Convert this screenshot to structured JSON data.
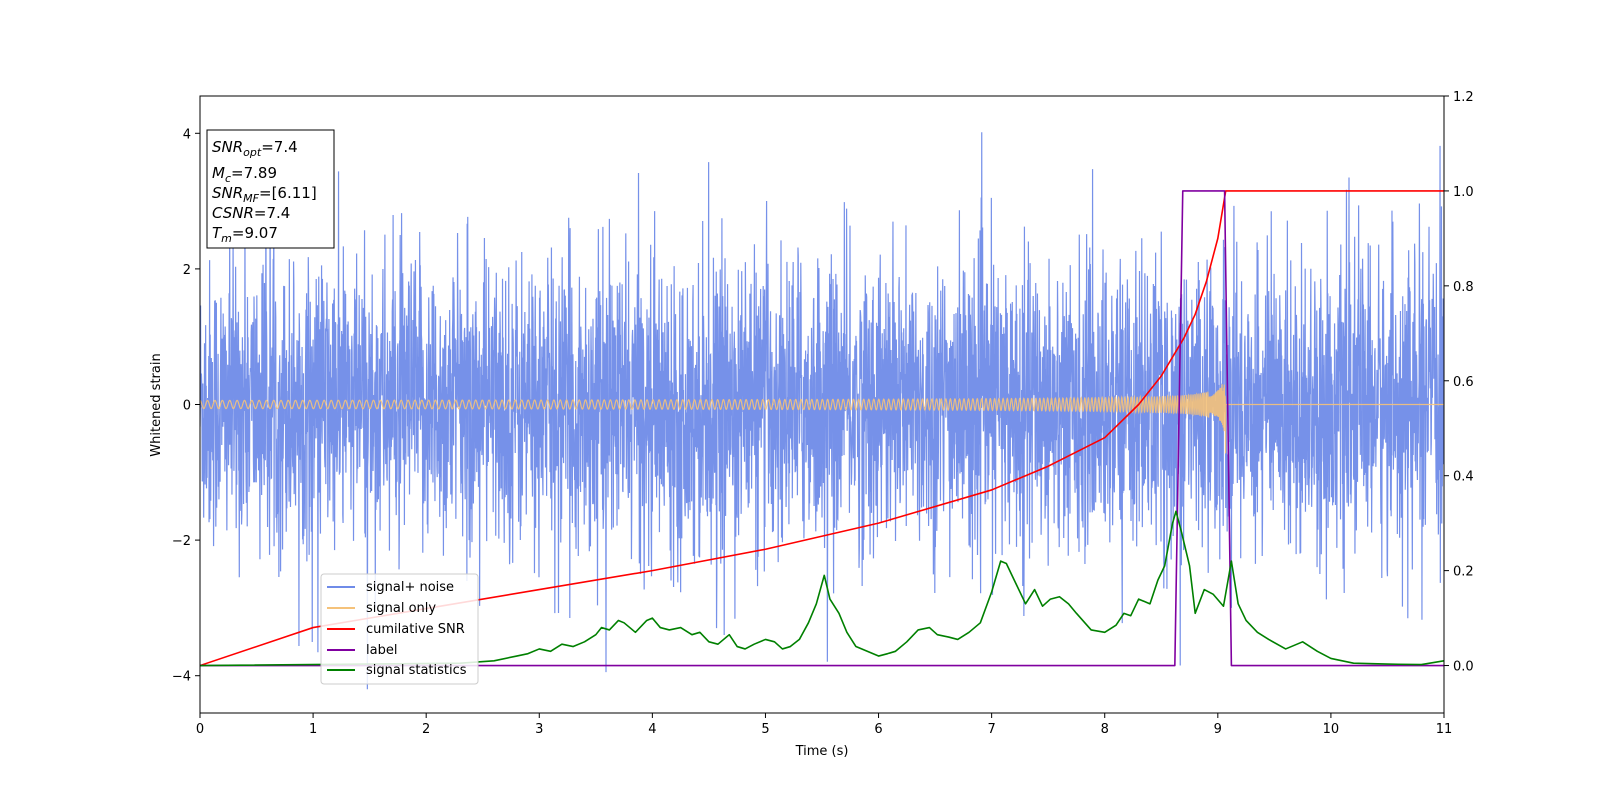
{
  "chart_data": {
    "type": "line",
    "xlabel": "Time (s)",
    "ylabel": "Whitened strain",
    "xlim": [
      0,
      11
    ],
    "ylim_left": [
      -4.55,
      4.55
    ],
    "ylim_right": [
      -0.1,
      1.2
    ],
    "xticks": [
      "0",
      "1",
      "2",
      "3",
      "4",
      "5",
      "6",
      "7",
      "8",
      "9",
      "10",
      "11"
    ],
    "yticks_left": [
      "4",
      "2",
      "0",
      "−2",
      "−4"
    ],
    "yticks_right": [
      "1.2",
      "1.0",
      "0.8",
      "0.6",
      "0.4",
      "0.2",
      "0.0"
    ],
    "legend_position": "lower-left",
    "grid": false,
    "info_box": {
      "snr_opt": {
        "main": "SNR",
        "sub": "opt",
        "value": "=7.4"
      },
      "mc": {
        "main": "M",
        "sub": "c",
        "value": "=7.89"
      },
      "snr_mf": {
        "main": "SNR",
        "sub": "MF",
        "value": "=[6.11]"
      },
      "csnr": {
        "main": "CSNR",
        "value": "=7.4"
      },
      "tm": {
        "main": "T",
        "sub": "m",
        "value": "=9.07"
      }
    },
    "series": [
      {
        "name": "signal+ noise",
        "color": "#6f8be8",
        "axis": "left",
        "kind": "noise",
        "peak_abs": 4.2,
        "typical_abs": 2.2
      },
      {
        "name": "signal only",
        "color": "#f5c27a",
        "axis": "left",
        "kind": "chirp",
        "t_merge": 9.07,
        "peak_amplitude": 1.05
      },
      {
        "name": "cumilative SNR",
        "color": "#ff0000",
        "axis": "right",
        "x": [
          0,
          1,
          2,
          3,
          4,
          5,
          6,
          7,
          7.5,
          8,
          8.3,
          8.5,
          8.7,
          8.8,
          8.9,
          9.0,
          9.07,
          11
        ],
        "y": [
          0.0,
          0.08,
          0.12,
          0.16,
          0.2,
          0.245,
          0.3,
          0.37,
          0.42,
          0.48,
          0.55,
          0.61,
          0.69,
          0.74,
          0.81,
          0.9,
          1.0,
          1.0
        ]
      },
      {
        "name": "label",
        "color": "#8000a0",
        "axis": "right",
        "x": [
          0,
          8.62,
          8.69,
          9.06,
          9.12,
          11
        ],
        "y": [
          0,
          0,
          1,
          1,
          0,
          0
        ]
      },
      {
        "name": "signal statistics",
        "color": "#008000",
        "axis": "right",
        "x": [
          0,
          2.3,
          2.6,
          2.8,
          2.9,
          3.0,
          3.1,
          3.2,
          3.3,
          3.4,
          3.5,
          3.55,
          3.62,
          3.7,
          3.75,
          3.8,
          3.85,
          3.95,
          4.0,
          4.07,
          4.15,
          4.25,
          4.35,
          4.42,
          4.5,
          4.58,
          4.68,
          4.75,
          4.82,
          4.9,
          5.0,
          5.08,
          5.15,
          5.22,
          5.3,
          5.38,
          5.45,
          5.52,
          5.57,
          5.65,
          5.72,
          5.8,
          5.9,
          6.0,
          6.08,
          6.15,
          6.25,
          6.35,
          6.45,
          6.52,
          6.62,
          6.7,
          6.8,
          6.9,
          7.0,
          7.08,
          7.13,
          7.2,
          7.3,
          7.38,
          7.45,
          7.52,
          7.6,
          7.68,
          7.75,
          7.88,
          8.0,
          8.1,
          8.17,
          8.23,
          8.3,
          8.4,
          8.47,
          8.53,
          8.6,
          8.63,
          8.68,
          8.75,
          8.8,
          8.88,
          8.96,
          9.05,
          9.12,
          9.18,
          9.25,
          9.35,
          9.45,
          9.6,
          9.75,
          9.88,
          10.0,
          10.2,
          10.5,
          10.8,
          11
        ],
        "y": [
          0.0,
          0.005,
          0.01,
          0.02,
          0.025,
          0.035,
          0.03,
          0.045,
          0.04,
          0.05,
          0.065,
          0.08,
          0.075,
          0.095,
          0.09,
          0.08,
          0.07,
          0.095,
          0.1,
          0.08,
          0.075,
          0.08,
          0.065,
          0.07,
          0.05,
          0.045,
          0.065,
          0.04,
          0.035,
          0.045,
          0.055,
          0.05,
          0.035,
          0.04,
          0.055,
          0.09,
          0.13,
          0.19,
          0.14,
          0.11,
          0.07,
          0.04,
          0.03,
          0.02,
          0.025,
          0.03,
          0.05,
          0.075,
          0.08,
          0.065,
          0.06,
          0.055,
          0.07,
          0.09,
          0.155,
          0.22,
          0.215,
          0.18,
          0.13,
          0.16,
          0.125,
          0.14,
          0.145,
          0.13,
          0.11,
          0.075,
          0.07,
          0.085,
          0.11,
          0.105,
          0.14,
          0.13,
          0.18,
          0.21,
          0.3,
          0.325,
          0.28,
          0.21,
          0.11,
          0.16,
          0.15,
          0.125,
          0.22,
          0.13,
          0.095,
          0.07,
          0.055,
          0.035,
          0.05,
          0.03,
          0.015,
          0.005,
          0.003,
          0.002,
          0.01
        ]
      }
    ]
  }
}
